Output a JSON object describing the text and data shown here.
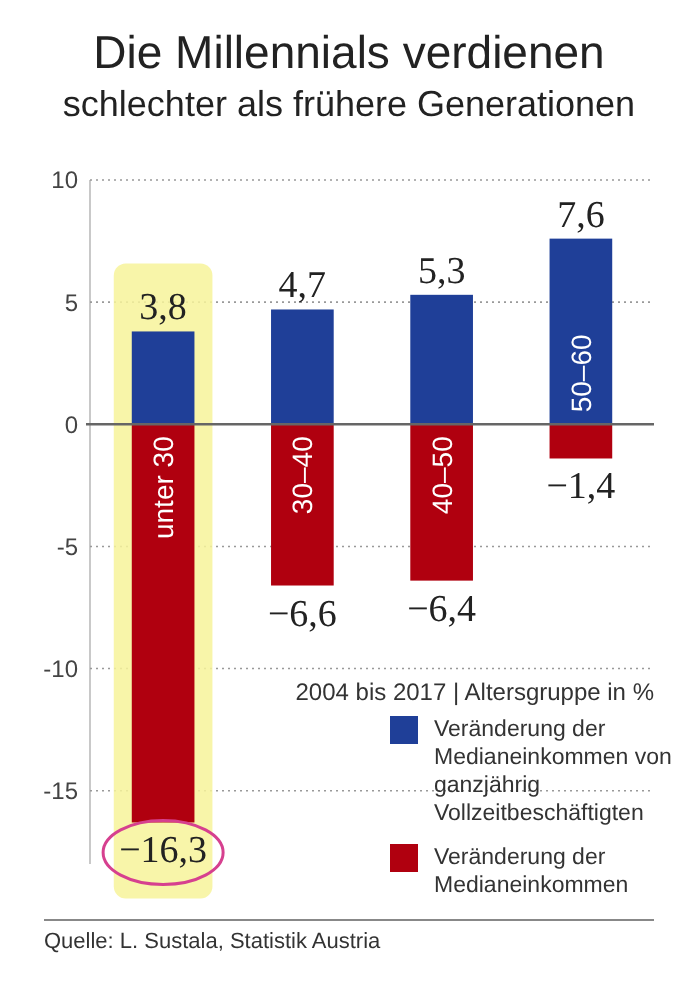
{
  "chart_data": {
    "type": "bar",
    "title": "Die Millennials verdienen schlechter als frühere Generationen",
    "categories": [
      "unter 30",
      "30–40",
      "40–50",
      "50–60"
    ],
    "series": [
      {
        "name": "Veränderung der Medianeinkommen von ganzjährig Vollzeitbeschäftigten",
        "color": "#1f3f98",
        "values": [
          3.8,
          4.7,
          5.3,
          7.6
        ],
        "value_labels": [
          "3,8",
          "4,7",
          "5,3",
          "7,6"
        ]
      },
      {
        "name": "Veränderung der Medianeinkommen",
        "color": "#b0000f",
        "values": [
          -16.3,
          -6.6,
          -6.4,
          -1.4
        ],
        "value_labels": [
          "−16,3",
          "−6,6",
          "−6,4",
          "−1,4"
        ]
      }
    ],
    "legend_title": "2004 bis 2017 | Altersgruppe in %",
    "ylim": [
      -18,
      10
    ],
    "yticks": [
      -15,
      -10,
      -5,
      0,
      5,
      10
    ],
    "grid": "y",
    "stacked": true,
    "legend": "bottom right",
    "annotations": [
      "Quelle: L. Sustala, Statistik Austria"
    ]
  }
}
